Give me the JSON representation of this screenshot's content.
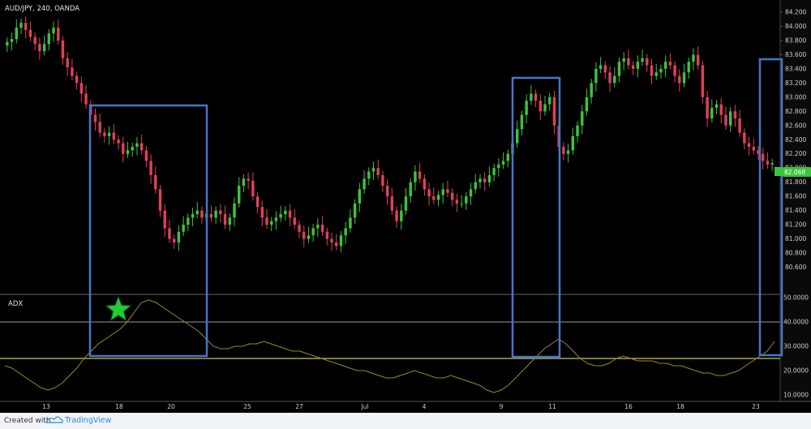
{
  "header": {
    "title": "AUD/JPY, 240, OANDA"
  },
  "footer": {
    "created_label": "Created with",
    "brand_label": "TradingView"
  },
  "colors": {
    "up": "#3cc43c",
    "down": "#e0405a",
    "box": "#4a74c8",
    "adx_line": "#9a8a20",
    "threshold_line": "#c8c83c",
    "star": "#22cc33"
  },
  "chart_data": [
    {
      "type": "candlestick",
      "title": "AUD/JPY, 240, OANDA",
      "ylim": [
        80.4,
        84.2
      ],
      "y_ticks": [
        "84.200",
        "84.000",
        "83.800",
        "83.600",
        "83.400",
        "83.200",
        "83.000",
        "82.800",
        "82.600",
        "82.400",
        "82.200",
        "82.000",
        "81.800",
        "81.600",
        "81.400",
        "81.200",
        "81.000",
        "80.800",
        "80.600"
      ],
      "last_price": "82.068",
      "x_ticks": [
        "13",
        "18",
        "20",
        "25",
        "27",
        "Jul",
        "4",
        "9",
        "11",
        "16",
        "18",
        "23"
      ],
      "highlight_boxes": 3,
      "series": [
        {
          "name": "",
          "close": [
            83.78,
            83.82,
            83.98,
            84.05,
            83.95,
            83.85,
            83.75,
            83.65,
            83.75,
            83.9,
            83.98,
            83.8,
            83.55,
            83.42,
            83.3,
            83.2,
            83.05,
            82.9,
            82.75,
            82.65,
            82.5,
            82.45,
            82.5,
            82.4,
            82.35,
            82.2,
            82.25,
            82.3,
            82.35,
            82.25,
            82.1,
            81.9,
            81.7,
            81.4,
            81.15,
            81.0,
            80.95,
            81.1,
            81.2,
            81.3,
            81.35,
            81.4,
            81.3,
            81.35,
            81.3,
            81.4,
            81.35,
            81.2,
            81.3,
            81.5,
            81.75,
            81.85,
            81.82,
            81.6,
            81.45,
            81.3,
            81.2,
            81.25,
            81.3,
            81.35,
            81.4,
            81.3,
            81.2,
            81.1,
            81.0,
            81.05,
            81.15,
            81.2,
            81.1,
            81.0,
            80.95,
            80.9,
            81.05,
            81.15,
            81.3,
            81.5,
            81.7,
            81.85,
            81.95,
            82.0,
            81.9,
            81.75,
            81.6,
            81.4,
            81.25,
            81.4,
            81.6,
            81.8,
            81.95,
            81.85,
            81.7,
            81.6,
            81.55,
            81.62,
            81.7,
            81.65,
            81.55,
            81.5,
            81.5,
            81.6,
            81.7,
            81.8,
            81.85,
            81.8,
            81.9,
            82.0,
            82.05,
            82.1,
            82.2,
            82.35,
            82.55,
            82.75,
            82.95,
            83.05,
            82.95,
            82.8,
            82.9,
            83.0,
            82.6,
            82.3,
            82.2,
            82.25,
            82.45,
            82.6,
            82.8,
            83.0,
            83.2,
            83.4,
            83.45,
            83.35,
            83.2,
            83.3,
            83.5,
            83.55,
            83.45,
            83.4,
            83.5,
            83.55,
            83.45,
            83.3,
            83.35,
            83.4,
            83.5,
            83.45,
            83.3,
            83.2,
            83.35,
            83.5,
            83.6,
            83.45,
            83.0,
            82.7,
            82.85,
            82.9,
            82.75,
            82.6,
            82.8,
            82.7,
            82.5,
            82.35,
            82.3,
            82.25,
            82.2,
            82.1,
            82.05,
            82.07
          ]
        }
      ]
    },
    {
      "type": "line",
      "title": "ADX",
      "ylim": [
        10,
        50
      ],
      "y_ticks": [
        "50.0000",
        "40.0000",
        "30.0000",
        "20.0000",
        "10.0000"
      ],
      "threshold": 25,
      "series": [
        {
          "name": "ADX",
          "values": [
            22,
            21,
            19,
            17,
            15,
            13,
            12,
            13,
            15,
            18,
            21,
            25,
            28,
            31,
            33,
            35,
            37,
            40,
            44,
            48,
            49,
            48,
            46,
            44,
            42,
            40,
            38,
            36,
            33,
            30,
            29,
            29,
            30,
            30,
            31,
            31,
            32,
            31,
            30,
            29,
            28,
            28,
            27,
            26,
            25,
            24,
            23,
            22,
            21,
            20,
            20,
            19,
            18,
            17,
            17,
            18,
            19,
            20,
            19,
            18,
            17,
            17,
            18,
            17,
            16,
            15,
            14,
            12,
            11,
            12,
            14,
            17,
            20,
            23,
            26,
            29,
            31,
            33,
            31,
            28,
            25,
            23,
            22,
            22,
            23,
            25,
            26,
            25,
            24,
            24,
            24,
            23,
            23,
            22,
            22,
            21,
            20,
            19,
            19,
            18,
            18,
            19,
            20,
            22,
            24,
            26,
            28,
            32
          ]
        }
      ]
    }
  ]
}
